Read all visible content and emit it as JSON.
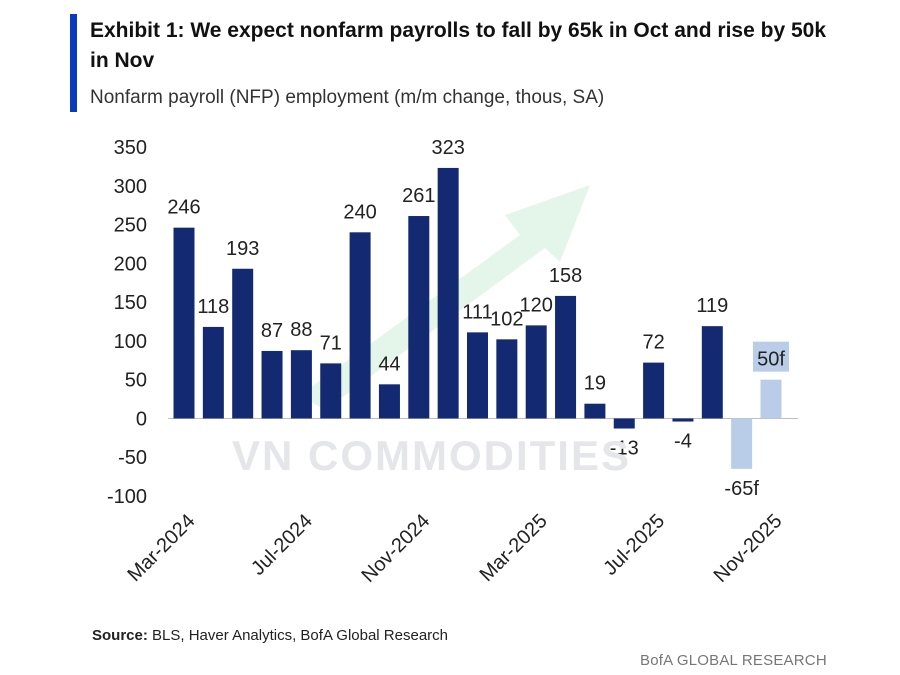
{
  "header": {
    "title": "Exhibit 1: We expect nonfarm payrolls to fall by 65k in Oct and rise by 50k in Nov",
    "subtitle": "Nonfarm payroll (NFP) employment (m/m change, thous, SA)"
  },
  "footer": {
    "source_label": "Source:",
    "source_text": " BLS, Haver Analytics, BofA Global Research",
    "brand": "BofA GLOBAL RESEARCH"
  },
  "watermark": "VN COMMODITIES",
  "colors": {
    "actual": "#132a73",
    "forecast": "#b9cde8",
    "accent": "#0a3bbf",
    "arrow": "#e4f6ea"
  },
  "chart_data": {
    "type": "bar",
    "ylim": [
      -100,
      350
    ],
    "yticks": [
      350,
      300,
      250,
      200,
      150,
      100,
      50,
      0,
      -50,
      -100
    ],
    "x_tick_labels": [
      {
        "index": 0,
        "label": "Mar-2024"
      },
      {
        "index": 4,
        "label": "Jul-2024"
      },
      {
        "index": 8,
        "label": "Nov-2024"
      },
      {
        "index": 12,
        "label": "Mar-2025"
      },
      {
        "index": 16,
        "label": "Jul-2025"
      },
      {
        "index": 20,
        "label": "Nov-2025"
      }
    ],
    "categories": [
      "Mar-2024",
      "Apr-2024",
      "May-2024",
      "Jun-2024",
      "Jul-2024",
      "Aug-2024",
      "Sep-2024",
      "Oct-2024",
      "Nov-2024",
      "Dec-2024",
      "Jan-2025",
      "Feb-2025",
      "Mar-2025",
      "Apr-2025",
      "May-2025",
      "Jun-2025",
      "Jul-2025",
      "Aug-2025",
      "Sep-2025",
      "Oct-2025",
      "Nov-2025"
    ],
    "values": [
      246,
      118,
      193,
      87,
      88,
      71,
      240,
      44,
      261,
      323,
      111,
      102,
      120,
      158,
      19,
      -13,
      72,
      -4,
      119,
      -65,
      50
    ],
    "labels": [
      "246",
      "118",
      "193",
      "87",
      "88",
      "71",
      "240",
      "44",
      "261",
      "323",
      "111",
      "102",
      "120",
      "158",
      "19",
      "-13",
      "72",
      "-4",
      "119",
      "-65f",
      "50f"
    ],
    "forecast": [
      false,
      false,
      false,
      false,
      false,
      false,
      false,
      false,
      false,
      false,
      false,
      false,
      false,
      false,
      false,
      false,
      false,
      false,
      false,
      true,
      true
    ]
  }
}
